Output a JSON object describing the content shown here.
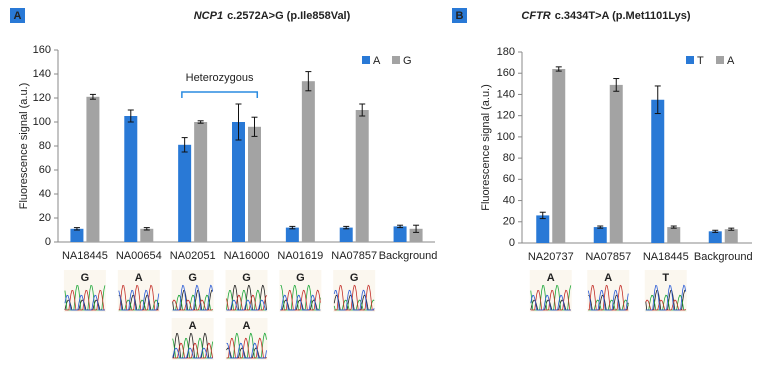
{
  "chart_data": [
    {
      "type": "bar",
      "panel": "A",
      "title_gene": "NCP1",
      "title": "c.2572A>G (p.Ile858Val)",
      "y_label": "Fluorescence signal (a.u.)",
      "annotation": "Heterozygous",
      "categories": [
        "NA18445",
        "NA00654",
        "NA02051",
        "NA16000",
        "NA01619",
        "NA07857",
        "Background"
      ],
      "series": [
        {
          "name": "A",
          "color": "#2979d6",
          "values": [
            11,
            105,
            81,
            100,
            12,
            12,
            13
          ],
          "errors": [
            1,
            5,
            6,
            15,
            1,
            1,
            1
          ]
        },
        {
          "name": "G",
          "color": "#a3a3a3",
          "values": [
            121,
            11,
            100,
            96,
            134,
            110,
            11
          ],
          "errors": [
            2,
            1,
            1,
            8,
            8,
            5,
            3
          ]
        }
      ],
      "ylim": [
        0,
        160
      ],
      "yticks": [
        0,
        20,
        40,
        60,
        80,
        100,
        120,
        140,
        160
      ],
      "legend": "upper right",
      "traces": [
        [
          "G"
        ],
        [
          "A"
        ],
        [
          "G",
          "A"
        ],
        [
          "G",
          "A"
        ],
        [
          "G"
        ],
        [
          "G"
        ],
        []
      ],
      "base_colors": {
        "G": "#222222",
        "A": "#1fa83a",
        "T": "#c3302a"
      }
    },
    {
      "type": "bar",
      "panel": "B",
      "title_gene": "CFTR",
      "title": "c.3434T>A (p.Met1101Lys)",
      "y_label": "Fluorescence signal (a.u.)",
      "categories": [
        "NA20737",
        "NA07857",
        "NA18445",
        "Background"
      ],
      "series": [
        {
          "name": "T",
          "color": "#2979d6",
          "values": [
            26,
            15,
            135,
            11
          ],
          "errors": [
            3,
            1,
            13,
            1
          ]
        },
        {
          "name": "A",
          "color": "#a3a3a3",
          "values": [
            164,
            149,
            15,
            13
          ],
          "errors": [
            2,
            6,
            1,
            1
          ]
        }
      ],
      "ylim": [
        0,
        180
      ],
      "yticks": [
        0,
        20,
        40,
        60,
        80,
        100,
        120,
        140,
        160,
        180
      ],
      "legend": "upper right",
      "traces": [
        [
          "A"
        ],
        [
          "A"
        ],
        [
          "T"
        ],
        []
      ],
      "base_colors": {
        "G": "#222222",
        "A": "#1fa83a",
        "T": "#c3302a"
      }
    }
  ]
}
